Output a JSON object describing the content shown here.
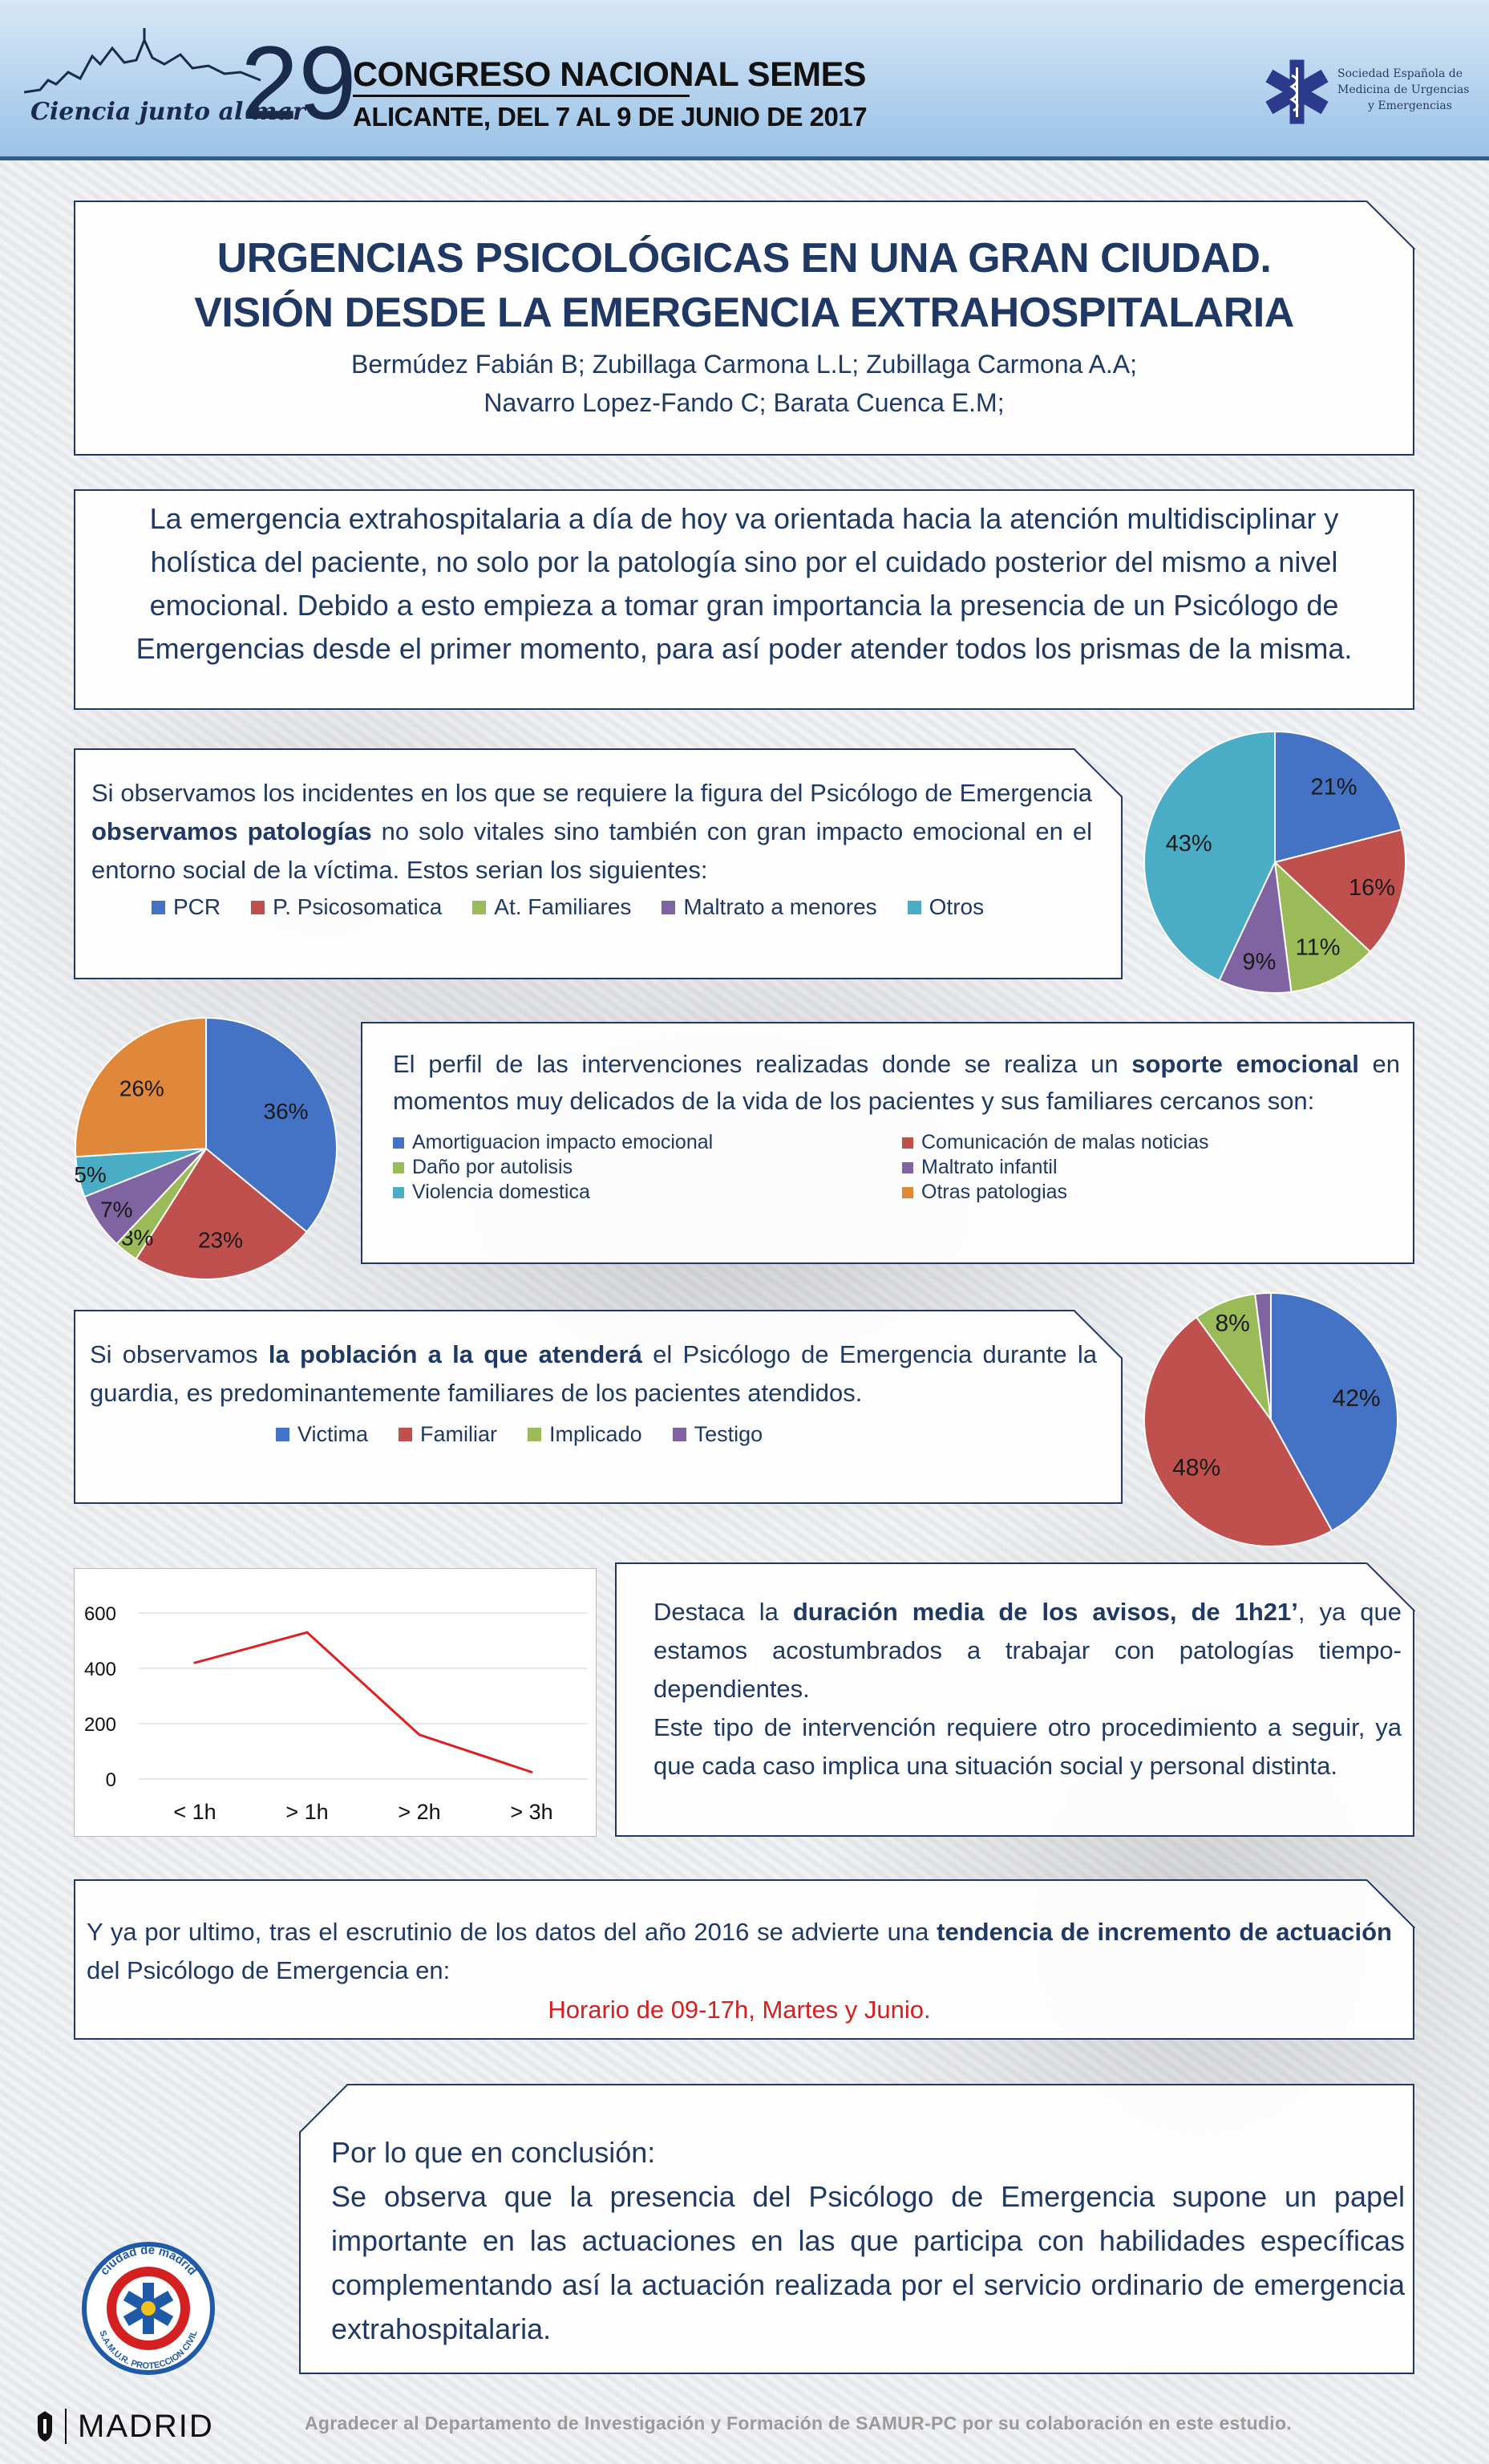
{
  "header": {
    "tagline": "Ciencia junto al mar",
    "edition_number": "29",
    "congress_line1": "CONGRESO NACIONAL SEMES",
    "congress_line2": "ALICANTE, DEL 7 AL 9 DE JUNIO DE 2017",
    "society_line1": "Sociedad Española de",
    "society_line2": "Medicina de Urgencias",
    "society_line3": "y Emergencias",
    "colors": {
      "header_top": "#d6e7f6",
      "header_bottom": "#9cc3e8",
      "accent": "#1f3864"
    }
  },
  "title": {
    "line1": "URGENCIAS PSICOLÓGICAS EN UNA GRAN CIUDAD.",
    "line2": "VISIÓN DESDE LA EMERGENCIA EXTRAHOSPITALARIA",
    "authors_line1": "Bermúdez Fabián B; Zubillaga Carmona L.L; Zubillaga Carmona A.A;",
    "authors_line2": "Navarro Lopez-Fando C; Barata Cuenca E.M;"
  },
  "intro": {
    "text": "La emergencia extrahospitalaria a día de hoy va orientada hacia la atención multidisciplinar y holística del paciente, no solo por la patología sino por el cuidado posterior del mismo a nivel emocional. Debido a esto empieza a tomar gran importancia la presencia de un Psicólogo de Emergencias desde el primer momento, para así poder atender todos los prismas de la misma."
  },
  "section1": {
    "text_a": "Si observamos los incidentes en los que se requiere la figura del Psicólogo de Emergencia ",
    "text_bold": "observamos patologías",
    "text_b": " no solo vitales sino también con gran impacto emocional en el entorno social de la víctima. Estos serian los siguientes:"
  },
  "section2": {
    "text_a": "El perfil de las intervenciones realizadas donde se realiza un ",
    "text_bold": "soporte emocional",
    "text_b": " en momentos muy delicados de la vida de los pacientes y sus familiares cercanos son:"
  },
  "section3": {
    "text_a": "Si observamos ",
    "text_bold": "la población a la que atenderá",
    "text_b": " el Psicólogo de Emergencia durante la guardia, es predominantemente familiares de los pacientes atendidos."
  },
  "section4": {
    "text_a": "Destaca la ",
    "text_bold": "duración media de los avisos, de 1h21’",
    "text_b": ", ya que estamos acostumbrados a trabajar con patologías tiempo-dependientes.",
    "text_c": "Este tipo de intervención requiere otro procedimiento a seguir, ya que cada caso implica una situación social y personal distinta."
  },
  "section5": {
    "text_a": "Y ya por ultimo, tras el escrutinio de los datos del año 2016 se advierte una ",
    "text_bold": "tendencia de incremento de actuación",
    "text_b": " del Psicólogo de Emergencia en:",
    "highlight": "Horario de 09-17h, Martes y Junio."
  },
  "conclusion": {
    "heading": "Por lo que en conclusión:",
    "text": "Se observa que la presencia del Psicólogo de Emergencia supone un papel importante en las actuaciones en las que participa con habilidades específicas complementando así la actuación  realizada por el servicio ordinario de emergencia extrahospitalaria."
  },
  "footer": {
    "acknowledgement": "Agradecer al Departamento de Investigación y Formación de SAMUR-PC por su colaboración en este estudio.",
    "city": "MADRID",
    "samur_top": "ciudad de madrid",
    "samur_bottom": "S.A.M.U.R. PROTECCION CIVIL"
  },
  "chart_data": [
    {
      "type": "pie",
      "categories": [
        "PCR",
        "P. Psicosomatica",
        "At. Familiares",
        "Maltrato a menores",
        "Otros"
      ],
      "values": [
        21,
        16,
        11,
        9,
        43
      ],
      "labels": [
        "21%",
        "16%",
        "11%",
        "9%",
        "43%"
      ],
      "colors": [
        "#4472c4",
        "#c0504d",
        "#9bbb59",
        "#8064a2",
        "#4bacc6"
      ],
      "legend_position": "bottom"
    },
    {
      "type": "pie",
      "categories": [
        "Amortiguacion impacto emocional",
        "Comunicación de malas noticias",
        "Daño por autolisis",
        "Maltrato infantil",
        "Violencia domestica",
        "Otras patologias"
      ],
      "values": [
        36,
        23,
        3,
        7,
        5,
        26
      ],
      "labels": [
        "36%",
        "23%",
        "3%",
        "7%",
        "5%",
        "26%"
      ],
      "colors": [
        "#4472c4",
        "#c0504d",
        "#9bbb59",
        "#8064a2",
        "#4bacc6",
        "#e0883a"
      ],
      "legend_position": "right"
    },
    {
      "type": "pie",
      "categories": [
        "Victima",
        "Familiar",
        "Implicado",
        "Testigo"
      ],
      "values": [
        42,
        48,
        8,
        2
      ],
      "labels": [
        "42%",
        "48%",
        "8%",
        ""
      ],
      "colors": [
        "#4472c4",
        "#c0504d",
        "#9bbb59",
        "#8064a2"
      ],
      "legend_position": "bottom"
    },
    {
      "type": "line",
      "categories": [
        "< 1h",
        "> 1h",
        "> 2h",
        "> 3h"
      ],
      "series": [
        {
          "values": [
            420,
            530,
            160,
            25
          ],
          "color": "#e02020"
        }
      ],
      "ylim": [
        0,
        600
      ],
      "yticks": [
        "600",
        "400",
        "200",
        "0"
      ],
      "grid": true
    }
  ]
}
